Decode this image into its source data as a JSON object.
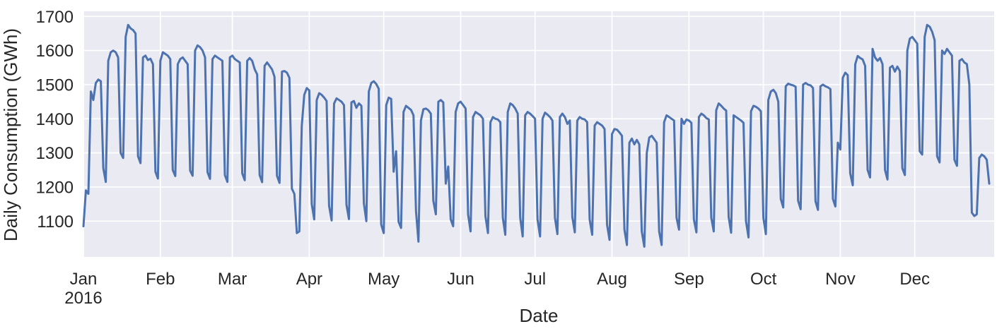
{
  "chart_data": {
    "type": "line",
    "title": "",
    "xlabel": "Date",
    "ylabel": "Daily Consumption (GWh)",
    "x_start_date": "2016-01-01",
    "x_unit": "day",
    "x_tick_labels": [
      "Jan",
      "Feb",
      "Mar",
      "Apr",
      "May",
      "Jun",
      "Jul",
      "Aug",
      "Sep",
      "Oct",
      "Nov",
      "Dec"
    ],
    "x_tick_year_label": "2016",
    "month_start_day_index": [
      0,
      31,
      60,
      91,
      121,
      152,
      182,
      213,
      244,
      274,
      305,
      335
    ],
    "y_ticks": [
      1100,
      1200,
      1300,
      1400,
      1500,
      1600,
      1700
    ],
    "ylim": [
      995,
      1715
    ],
    "xlim_days": [
      0,
      367
    ],
    "grid": true,
    "legend": "none",
    "colors": {
      "line": "#4c72b0",
      "plot_bg": "#eaeaf2",
      "grid": "#ffffff",
      "text": "#262626",
      "figure_bg": "#ffffff"
    },
    "series": [
      {
        "name": "Daily Consumption (GWh)",
        "values": [
          1085,
          1190,
          1180,
          1480,
          1455,
          1505,
          1515,
          1510,
          1255,
          1215,
          1570,
          1595,
          1600,
          1595,
          1580,
          1300,
          1285,
          1640,
          1675,
          1665,
          1660,
          1650,
          1290,
          1270,
          1580,
          1585,
          1572,
          1576,
          1560,
          1245,
          1225,
          1570,
          1595,
          1590,
          1585,
          1575,
          1250,
          1232,
          1560,
          1575,
          1580,
          1570,
          1560,
          1248,
          1233,
          1600,
          1615,
          1610,
          1600,
          1580,
          1243,
          1224,
          1575,
          1585,
          1580,
          1575,
          1570,
          1235,
          1215,
          1580,
          1585,
          1575,
          1570,
          1565,
          1240,
          1220,
          1570,
          1578,
          1570,
          1545,
          1530,
          1235,
          1214,
          1555,
          1565,
          1555,
          1545,
          1523,
          1233,
          1212,
          1538,
          1540,
          1535,
          1520,
          1195,
          1180,
          1065,
          1070,
          1380,
          1470,
          1490,
          1483,
          1150,
          1105,
          1455,
          1475,
          1470,
          1462,
          1452,
          1145,
          1102,
          1445,
          1460,
          1455,
          1450,
          1440,
          1148,
          1106,
          1448,
          1452,
          1432,
          1445,
          1438,
          1152,
          1100,
          1480,
          1505,
          1510,
          1502,
          1488,
          1090,
          1065,
          1440,
          1462,
          1458,
          1245,
          1305,
          1098,
          1080,
          1420,
          1438,
          1432,
          1426,
          1410,
          1130,
          1040,
          1395,
          1428,
          1430,
          1425,
          1415,
          1160,
          1120,
          1450,
          1455,
          1448,
          1210,
          1260,
          1105,
          1085,
          1420,
          1445,
          1450,
          1440,
          1430,
          1120,
          1070,
          1405,
          1420,
          1415,
          1410,
          1400,
          1115,
          1065,
          1390,
          1405,
          1400,
          1398,
          1390,
          1110,
          1060,
          1420,
          1445,
          1440,
          1430,
          1415,
          1110,
          1055,
          1410,
          1420,
          1415,
          1408,
          1400,
          1105,
          1055,
          1400,
          1418,
          1412,
          1405,
          1395,
          1110,
          1062,
          1405,
          1415,
          1405,
          1385,
          1395,
          1112,
          1067,
          1395,
          1405,
          1400,
          1398,
          1390,
          1105,
          1060,
          1380,
          1390,
          1385,
          1380,
          1370,
          1090,
          1045,
          1355,
          1370,
          1368,
          1360,
          1350,
          1075,
          1030,
          1330,
          1342,
          1325,
          1338,
          1325,
          1070,
          1025,
          1300,
          1345,
          1350,
          1340,
          1330,
          1070,
          1030,
          1390,
          1410,
          1405,
          1400,
          1395,
          1110,
          1075,
          1400,
          1385,
          1398,
          1395,
          1388,
          1105,
          1067,
          1405,
          1415,
          1410,
          1402,
          1398,
          1110,
          1070,
          1425,
          1445,
          1438,
          1430,
          1424,
          1112,
          1066,
          1410,
          1405,
          1400,
          1395,
          1388,
          1100,
          1052,
          1422,
          1438,
          1435,
          1430,
          1422,
          1110,
          1062,
          1455,
          1480,
          1485,
          1475,
          1450,
          1165,
          1140,
          1495,
          1503,
          1500,
          1498,
          1494,
          1160,
          1135,
          1500,
          1505,
          1500,
          1498,
          1490,
          1158,
          1133,
          1495,
          1500,
          1495,
          1492,
          1487,
          1165,
          1143,
          1330,
          1310,
          1520,
          1535,
          1528,
          1240,
          1205,
          1560,
          1584,
          1578,
          1574,
          1555,
          1250,
          1228,
          1605,
          1580,
          1570,
          1578,
          1560,
          1250,
          1222,
          1550,
          1555,
          1538,
          1553,
          1540,
          1255,
          1235,
          1600,
          1635,
          1640,
          1630,
          1620,
          1305,
          1295,
          1640,
          1675,
          1670,
          1655,
          1630,
          1290,
          1272,
          1600,
          1590,
          1605,
          1595,
          1585,
          1280,
          1262,
          1570,
          1575,
          1565,
          1560,
          1500,
          1125,
          1115,
          1120,
          1285,
          1295,
          1290,
          1280,
          1210
        ]
      }
    ]
  }
}
